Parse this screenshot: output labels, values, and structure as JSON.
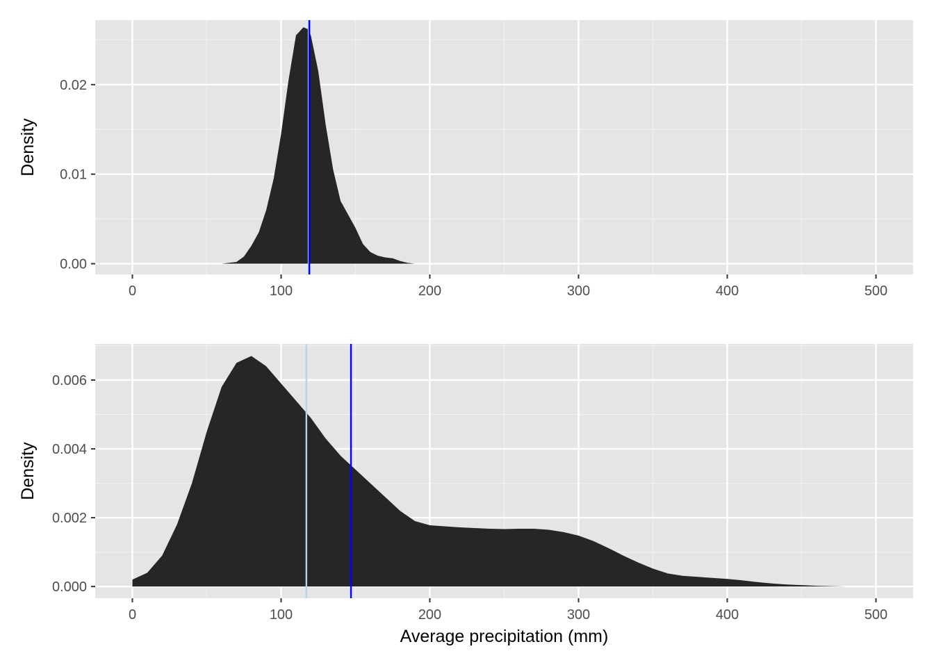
{
  "chart_data": [
    {
      "type": "area",
      "chart_kind": "density",
      "title": "",
      "xlabel": "",
      "ylabel": "Density",
      "xlim": [
        -25,
        525
      ],
      "ylim": [
        -0.0012,
        0.0272
      ],
      "x_ticks": [
        0,
        100,
        200,
        300,
        400,
        500
      ],
      "x_tick_labels": [
        "0",
        "100",
        "200",
        "300",
        "400",
        "500"
      ],
      "y_ticks": [
        0.0,
        0.01,
        0.02
      ],
      "y_tick_labels": [
        "0.00",
        "0.01",
        "0.02"
      ],
      "grid": true,
      "legend": "none",
      "fill_color": "#262626",
      "series": [
        {
          "x": [
            60,
            70,
            75,
            80,
            85,
            90,
            95,
            100,
            105,
            110,
            115,
            118,
            120,
            125,
            130,
            135,
            140,
            145,
            150,
            155,
            160,
            165,
            170,
            175,
            180,
            185,
            190,
            195
          ],
          "y": [
            0.0,
            0.0002,
            0.0008,
            0.002,
            0.0035,
            0.006,
            0.0095,
            0.0145,
            0.0205,
            0.0255,
            0.0264,
            0.0262,
            0.0255,
            0.0215,
            0.0155,
            0.0105,
            0.007,
            0.0055,
            0.004,
            0.0022,
            0.0013,
            0.0009,
            0.0007,
            0.0006,
            0.0003,
            0.0001,
            0.0,
            0.0
          ]
        }
      ],
      "vlines": [
        {
          "x": 118.5,
          "color": "#add8e6"
        },
        {
          "x": 119.0,
          "color": "#0000ff"
        }
      ]
    },
    {
      "type": "area",
      "chart_kind": "density",
      "title": "",
      "xlabel": "Average precipitation (mm)",
      "ylabel": "Density",
      "xlim": [
        -25,
        525
      ],
      "ylim": [
        -0.00034,
        0.00705
      ],
      "x_ticks": [
        0,
        100,
        200,
        300,
        400,
        500
      ],
      "x_tick_labels": [
        "0",
        "100",
        "200",
        "300",
        "400",
        "500"
      ],
      "y_ticks": [
        0.0,
        0.002,
        0.004,
        0.006
      ],
      "y_tick_labels": [
        "0.000",
        "0.002",
        "0.004",
        "0.006"
      ],
      "grid": true,
      "legend": "none",
      "fill_color": "#262626",
      "series": [
        {
          "x": [
            0,
            10,
            20,
            30,
            40,
            50,
            60,
            70,
            80,
            90,
            100,
            110,
            120,
            130,
            140,
            150,
            160,
            170,
            180,
            190,
            200,
            210,
            220,
            230,
            240,
            250,
            260,
            270,
            280,
            290,
            300,
            310,
            320,
            330,
            340,
            350,
            360,
            370,
            380,
            390,
            400,
            410,
            420,
            430,
            440,
            450,
            460,
            470,
            480,
            490,
            500
          ],
          "y": [
            0.0002,
            0.0004,
            0.0009,
            0.0018,
            0.003,
            0.0045,
            0.0058,
            0.0065,
            0.0067,
            0.0064,
            0.0059,
            0.0054,
            0.0049,
            0.0043,
            0.0038,
            0.0034,
            0.003,
            0.0026,
            0.0022,
            0.0019,
            0.00178,
            0.00175,
            0.00172,
            0.0017,
            0.00168,
            0.00167,
            0.00168,
            0.00168,
            0.00165,
            0.00158,
            0.00148,
            0.00132,
            0.00112,
            0.0009,
            0.0007,
            0.00052,
            0.00038,
            0.00031,
            0.00028,
            0.00025,
            0.00022,
            0.00018,
            0.00013,
            9e-05,
            6e-05,
            4e-05,
            2e-05,
            1e-05,
            0.0,
            0.0,
            0.0
          ]
        }
      ],
      "vlines": [
        {
          "x": 117.0,
          "color": "#add8e6"
        },
        {
          "x": 147.0,
          "color": "#0000ff"
        }
      ]
    }
  ]
}
